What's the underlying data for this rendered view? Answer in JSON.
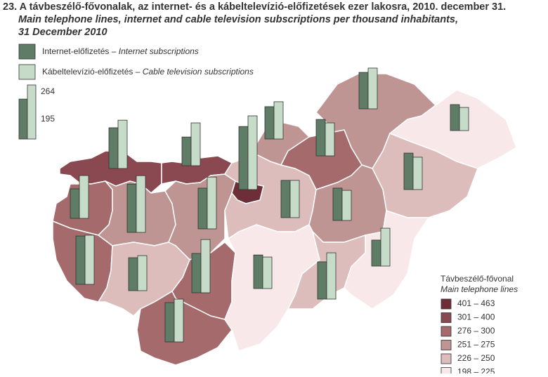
{
  "title": "23. A távbeszélő-fővonalak, az internet- és a kábeltelevízió-előfizetések ezer lakosra, 2010. december 31.",
  "subtitle": [
    "Main telephone lines, internet and cable television subscriptions per thousand inhabitants,",
    "31 December 2010"
  ],
  "series": [
    {
      "name": "Internet-előfizetés –",
      "name_en": "Internet subscriptions",
      "color": "#5f7c66"
    },
    {
      "name": "Kábeltelevízió-előfizetés –",
      "name_en": "Cable television subscriptions",
      "color": "#c6dcc8"
    }
  ],
  "reference": [
    195,
    264
  ],
  "legend": {
    "title": "Távbeszélő-fővonal",
    "title_en": "Main telephone lines",
    "classes": [
      {
        "label": "401 – 463",
        "color": "#6e2e37"
      },
      {
        "label": "301 – 400",
        "color": "#8a4850"
      },
      {
        "label": "276 – 300",
        "color": "#a56a6c"
      },
      {
        "label": "251 – 275",
        "color": "#bf9593"
      },
      {
        "label": "226 – 250",
        "color": "#dcbdbb"
      },
      {
        "label": "198 – 225",
        "color": "#f9e8e9"
      }
    ]
  },
  "counties": [
    {
      "color": "#8a4850",
      "values": [
        199,
        236
      ]
    },
    {
      "color": "#8a4850",
      "values": [
        140,
        209
      ]
    },
    {
      "color": "#a56a6c",
      "values": [
        144,
        209
      ]
    },
    {
      "color": "#a56a6c",
      "values": [
        236,
        240
      ]
    },
    {
      "color": "#bf9593",
      "values": [
        236,
        277
      ]
    },
    {
      "color": "#bf9593",
      "values": [
        199,
        253
      ]
    },
    {
      "color": "#dcbdbb",
      "values": [
        161,
        171
      ]
    },
    {
      "color": "#a56a6c",
      "values": [
        192,
        260
      ]
    },
    {
      "color": "#a56a6c",
      "values": [
        192,
        209
      ]
    },
    {
      "color": "#dcbdbb",
      "values": [
        182,
        182
      ]
    },
    {
      "color": "#6e2e37",
      "values": [
        308,
        360
      ]
    },
    {
      "color": "#bf9593",
      "values": [
        158,
        182
      ]
    },
    {
      "color": "#a56a6c",
      "values": [
        178,
        161
      ]
    },
    {
      "color": "#bf9593",
      "values": [
        178,
        199
      ]
    },
    {
      "color": "#f9e8e9",
      "values": [
        127,
        113
      ]
    },
    {
      "color": "#dcbdbb",
      "values": [
        178,
        158
      ]
    },
    {
      "color": "#bf9593",
      "values": [
        158,
        147
      ]
    },
    {
      "color": "#f9e8e9",
      "values": [
        164,
        154
      ]
    },
    {
      "color": "#dcbdbb",
      "values": [
        182,
        226
      ]
    },
    {
      "color": "#f9e8e9",
      "values": [
        127,
        185
      ]
    }
  ]
}
